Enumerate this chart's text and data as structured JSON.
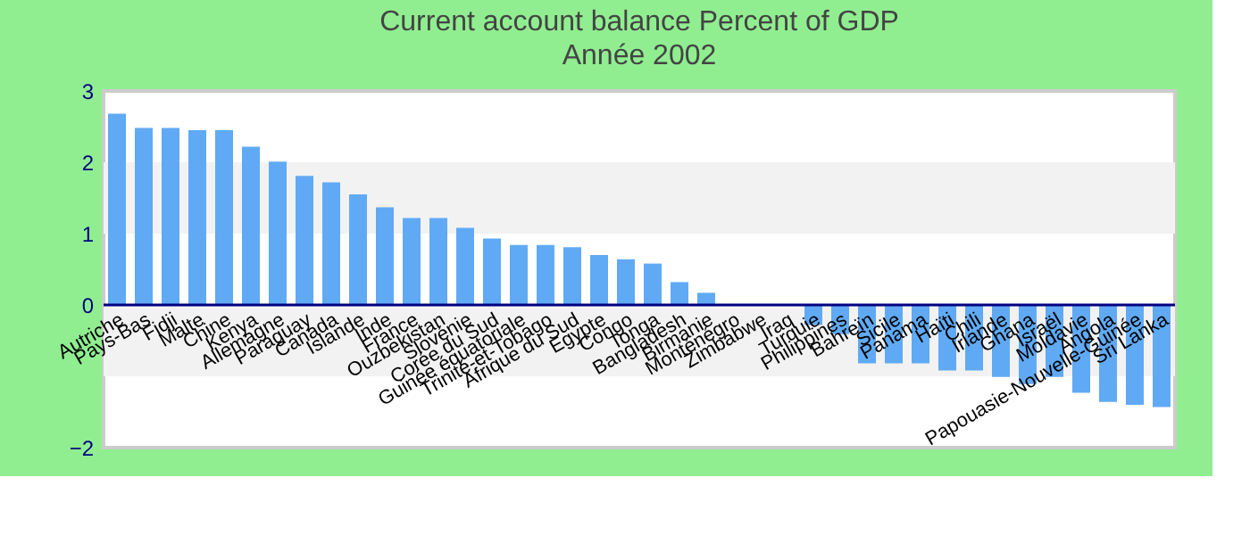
{
  "chart_data": {
    "type": "bar",
    "title": "Current account balance  Percent of GDP",
    "subtitle": "Année 2002",
    "categories": [
      "Autriche",
      "Pays-Bas",
      "Fidji",
      "Malte",
      "Chine",
      "Kenya",
      "Allemagne",
      "Paraguay",
      "Canada",
      "Islande",
      "Inde",
      "France",
      "Ouzbekistan",
      "Slovénie",
      "Corée du Sud",
      "Guinée équatoriale",
      "Trinité-et-Tobago",
      "Afrique du Sud",
      "Egypte",
      "Congo",
      "Tonga",
      "Bangladesh",
      "Birmanie",
      "Monténégro",
      "Zimbabwe",
      "Iraq",
      "Turquie",
      "Philippines",
      "Bahreïn",
      "Sicile",
      "Panama",
      "Haïti",
      "Chili",
      "Irlande",
      "Ghana",
      "Israël",
      "Moldavie",
      "Angola",
      "Papouasie-Nouvelle-Guinée",
      "Sri Lanka"
    ],
    "values": [
      2.68,
      2.48,
      2.48,
      2.45,
      2.45,
      2.22,
      2.01,
      1.81,
      1.72,
      1.55,
      1.37,
      1.22,
      1.22,
      1.08,
      0.93,
      0.84,
      0.84,
      0.81,
      0.7,
      0.64,
      0.58,
      0.32,
      0.17,
      0,
      0,
      0,
      -0.28,
      -0.41,
      -0.82,
      -0.82,
      -0.82,
      -0.92,
      -0.92,
      -1.01,
      -1.11,
      -1.01,
      -1.23,
      -1.36,
      -1.4,
      -1.43
    ],
    "color": "#60aaf5",
    "ylim": [
      -2,
      3
    ],
    "yticks": [
      -2,
      0,
      1,
      2,
      3
    ],
    "bands": [
      {
        "axis": "y",
        "from": 1,
        "to": 2,
        "color": "#f2f2f2"
      },
      {
        "axis": "y",
        "from": -1,
        "to": 0,
        "color": "#f2f2f2"
      }
    ],
    "ref_lines": [
      {
        "axis": "y",
        "value": 0,
        "color": "#000080"
      }
    ],
    "grid": false
  }
}
